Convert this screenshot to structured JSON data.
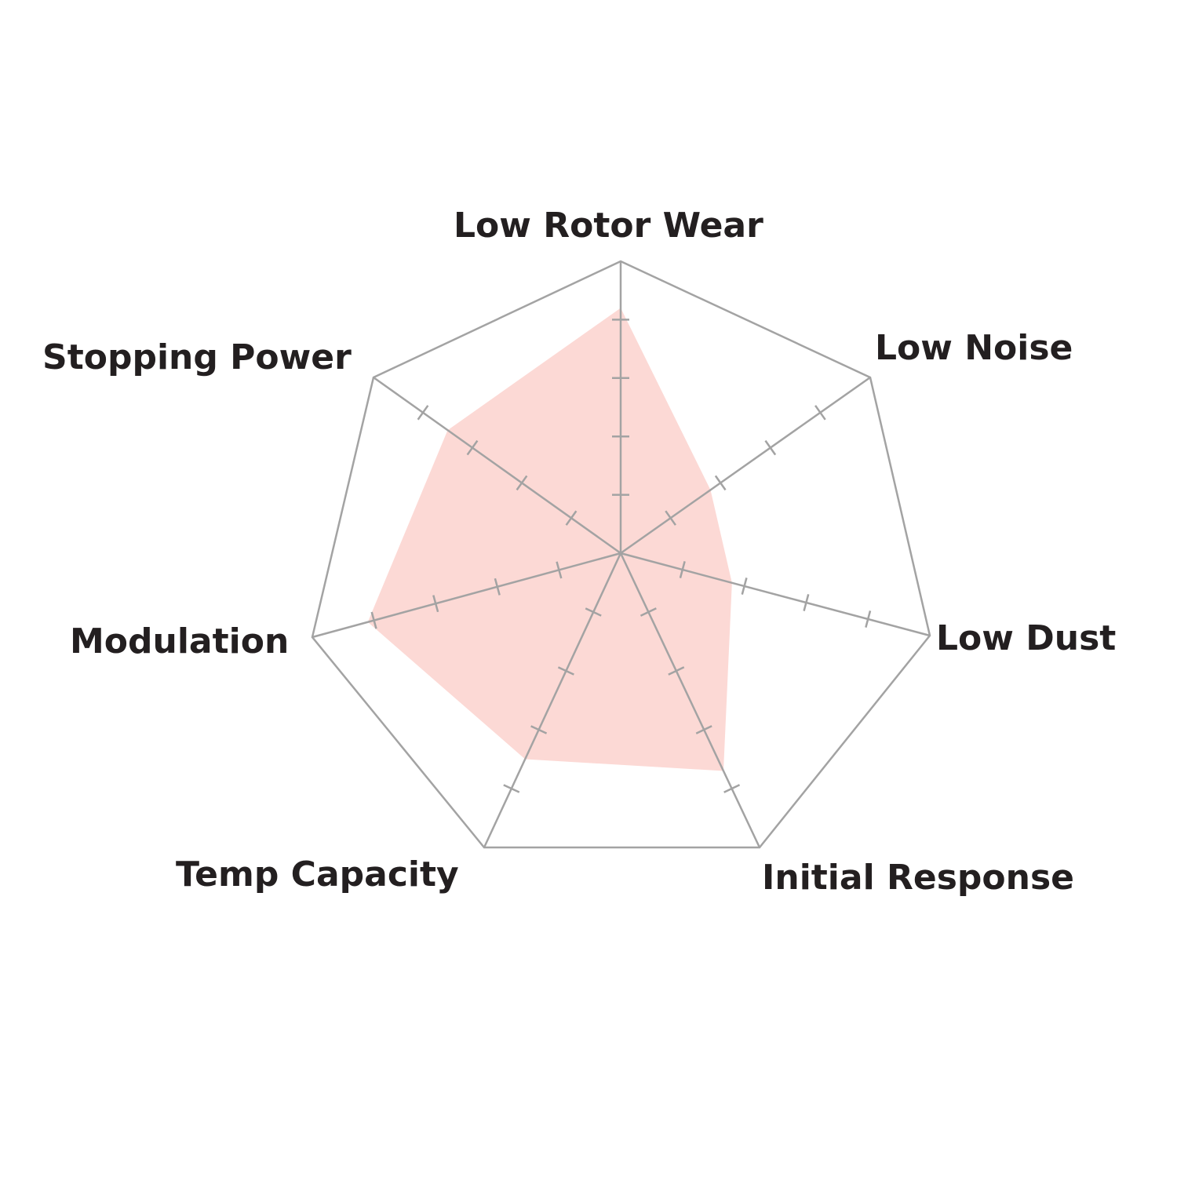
{
  "chart_data": {
    "type": "radar",
    "title": "",
    "axes": [
      "Low Rotor Wear",
      "Low Noise",
      "Low Dust",
      "Initial Response",
      "Temp Capacity",
      "Modulation",
      "Stopping Power"
    ],
    "values": [
      4.2,
      1.8,
      1.8,
      3.7,
      3.5,
      4.1,
      3.5
    ],
    "range": [
      0,
      5
    ],
    "tick_marks": [
      1,
      2,
      3,
      4
    ],
    "grid": true,
    "legend": "none",
    "colors": {
      "fill": "#fcd9d5",
      "grid": "#a3a3a3",
      "text": "#231f20"
    }
  }
}
